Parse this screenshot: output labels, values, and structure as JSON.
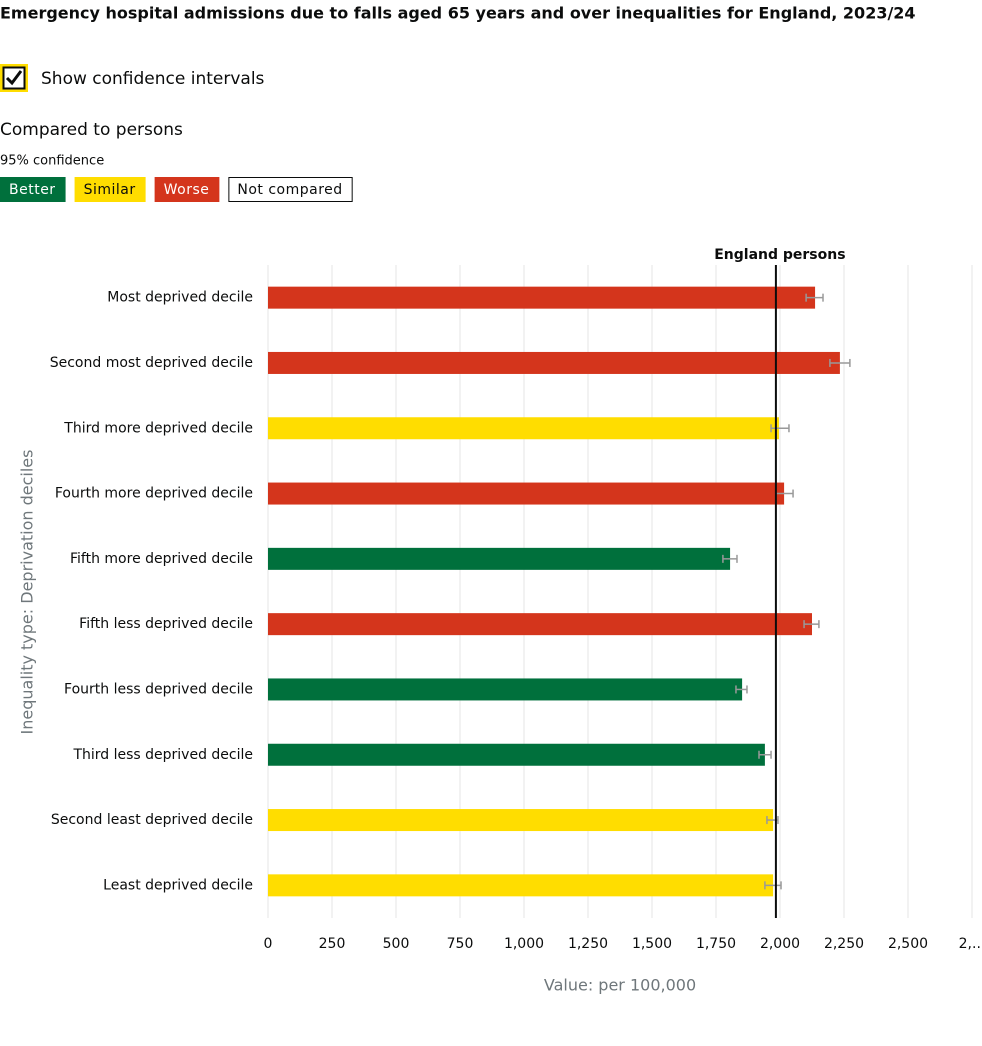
{
  "header": {
    "title": "Emergency hospital admissions due to falls aged 65 years and over inequalities for England, 2023/24",
    "checkbox_label": "Show confidence intervals",
    "checked": true,
    "comparison": "Compared to persons",
    "confidence": "95% confidence",
    "legend": [
      {
        "label": "Better",
        "color": "#00703c"
      },
      {
        "label": "Similar",
        "color": "#ffdd00"
      },
      {
        "label": "Worse",
        "color": "#d4351c"
      },
      {
        "label": "Not compared",
        "color": "#ffffff"
      }
    ]
  },
  "chart_data": {
    "type": "hbar",
    "xlabel": "Value: per 100,000",
    "ylabel": "Inequality type: Deprivation deciles",
    "categories": [
      "Most deprived decile",
      "Second most deprived decile",
      "Third more deprived decile",
      "Fourth more deprived decile",
      "Fifth more deprived decile",
      "Fifth less deprived decile",
      "Fourth less deprived decile",
      "Third less deprived decile",
      "Second least deprived decile",
      "Least deprived decile"
    ],
    "values": [
      2137,
      2234,
      1996,
      2016,
      1805,
      2125,
      1852,
      1941,
      1973,
      1973
    ],
    "ci_lower": [
      2102,
      2195,
      1965,
      1984,
      1777,
      2094,
      1828,
      1918,
      1949,
      1941
    ],
    "ci_upper": [
      2168,
      2273,
      2035,
      2051,
      1832,
      2152,
      1871,
      1965,
      1992,
      2004
    ],
    "colors": [
      "#d4351c",
      "#d4351c",
      "#ffdd00",
      "#d4351c",
      "#00703c",
      "#d4351c",
      "#00703c",
      "#00703c",
      "#ffdd00",
      "#ffdd00"
    ],
    "reference": {
      "label": "England persons",
      "value": 1984
    },
    "xlim": [
      0,
      2750
    ],
    "xticks": [
      0,
      250,
      500,
      750,
      {
        "value": 1000,
        "label": "1,000"
      },
      {
        "value": 1250,
        "label": "1,250"
      },
      {
        "value": 1500,
        "label": "1,500"
      },
      {
        "value": 1750,
        "label": "1,750"
      },
      {
        "value": 2000,
        "label": "2,000"
      },
      {
        "value": 2250,
        "label": "2,250"
      },
      {
        "value": 2500,
        "label": "2,500"
      },
      {
        "value": 2750,
        "label": "2,..."
      }
    ],
    "grid": true
  }
}
